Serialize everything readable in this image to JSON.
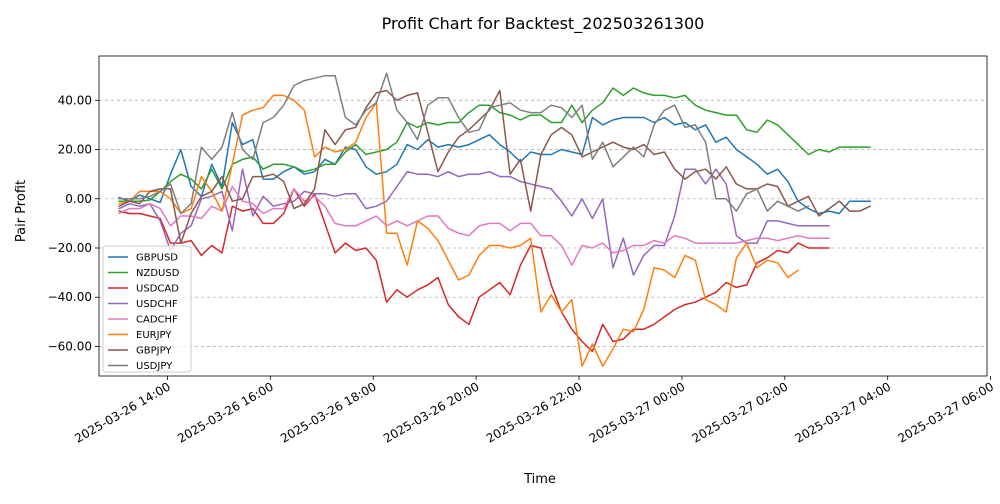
{
  "chart_data": {
    "type": "line",
    "title": "Profit Chart for Backtest_202503261300",
    "xlabel": "Time",
    "ylabel": "Pair Profit",
    "grid": true,
    "legend_position": "lower-left",
    "x_range_hours": [
      -0.33,
      16.93
    ],
    "ylim": [
      -72,
      58
    ],
    "y_ticks": [
      -60,
      -40,
      -20,
      0,
      20,
      40
    ],
    "y_tick_labels": [
      "−60.00",
      "−40.00",
      "−20.00",
      "0.00",
      "20.00",
      "40.00"
    ],
    "x_ticks_hours": [
      1,
      3,
      5,
      7,
      9,
      11,
      13,
      15,
      17
    ],
    "x_tick_labels": [
      "2025-03-26 14:00",
      "2025-03-26 16:00",
      "2025-03-26 18:00",
      "2025-03-26 20:00",
      "2025-03-26 22:00",
      "2025-03-27 00:00",
      "2025-03-27 02:00",
      "2025-03-27 04:00",
      "2025-03-27 06:00"
    ],
    "x_start_hours": 0.06,
    "x_step_hours": 0.2,
    "series": [
      {
        "name": "GBPUSD",
        "color": "#1f77b4",
        "values": [
          0.5,
          -1,
          1.5,
          0,
          -1.5,
          10,
          20,
          5,
          1,
          14,
          5,
          31,
          22,
          24,
          8,
          8,
          11,
          13,
          10,
          11,
          16,
          14,
          21,
          20,
          13,
          10,
          11,
          14,
          22,
          20,
          24,
          21,
          22,
          21,
          22,
          24,
          26,
          22,
          19,
          15,
          19,
          18,
          18,
          20,
          19,
          18,
          33,
          30,
          32,
          33,
          33,
          33,
          31,
          33,
          30,
          31,
          28,
          30,
          23,
          25,
          20,
          17,
          14,
          10,
          12,
          7,
          -1,
          -4,
          -6,
          -5,
          -6,
          -1,
          -1,
          -1
        ]
      },
      {
        "name": "NZDUSD",
        "color": "#2ca02c",
        "values": [
          -1,
          -1,
          -1,
          -0.5,
          3,
          7,
          10,
          8,
          4,
          12,
          4,
          14,
          16,
          17,
          12,
          14,
          14,
          13,
          11,
          12,
          14,
          14,
          19,
          22,
          18,
          19,
          20,
          23,
          31,
          29,
          31,
          30,
          31,
          31,
          35,
          38,
          38,
          35,
          34,
          32,
          34,
          34,
          31,
          31,
          38,
          31,
          36,
          39,
          45,
          42,
          45,
          43,
          42,
          42,
          41,
          42,
          38,
          36,
          35,
          34,
          34,
          28,
          27,
          32,
          30,
          26,
          22,
          18,
          20,
          19,
          21,
          21,
          21,
          21
        ]
      },
      {
        "name": "USDCAD",
        "color": "#d62728",
        "values": [
          -5,
          -6,
          -6,
          -7,
          -8,
          -18,
          -18,
          -17,
          -23,
          -19,
          -22,
          -3,
          -5,
          -4,
          -10,
          -10,
          -6,
          4,
          -3,
          2,
          -10,
          -22,
          -18,
          -21,
          -20,
          -25,
          -42,
          -37,
          -40,
          -37,
          -35,
          -32,
          -43,
          -48,
          -51,
          -40,
          -37,
          -34,
          -39,
          -27,
          -19,
          -20,
          -35,
          -46,
          -53,
          -58,
          -62,
          -51,
          -58,
          -57,
          -53,
          -53,
          -51,
          -48,
          -45,
          -43,
          -42,
          -40,
          -38,
          -34,
          -36,
          -35,
          -26,
          -24,
          -21,
          -22,
          -18,
          -20,
          -20,
          -20
        ]
      },
      {
        "name": "USDCHF",
        "color": "#9467bd",
        "values": [
          -4,
          -2,
          -3,
          -2,
          -9,
          -21,
          -14,
          -11,
          0,
          1,
          3,
          -13,
          12,
          -7,
          1,
          -3,
          -2,
          -1,
          3,
          2,
          2,
          1,
          2,
          2,
          -4,
          -3,
          -1,
          5,
          11,
          10,
          10,
          9,
          11,
          9,
          10,
          10,
          11,
          9,
          9,
          7,
          6,
          5,
          4,
          -1,
          -7,
          0,
          -8,
          0,
          -28,
          -16,
          -31,
          -23,
          -19,
          -19,
          -7,
          12,
          12,
          6,
          12,
          6,
          -15,
          -18,
          -18,
          -9,
          -9,
          -10,
          -11,
          -11,
          -11,
          -11
        ]
      },
      {
        "name": "CADCHF",
        "color": "#e377c2",
        "values": [
          -6,
          -4,
          -4,
          -2,
          -4,
          -11,
          -7,
          -7,
          -8,
          -3,
          -5,
          5,
          -1,
          -2,
          -6,
          -4,
          -4,
          4,
          -1,
          1,
          -3,
          -10,
          -11,
          -11,
          -9,
          -7,
          -11,
          -9,
          -11,
          -9,
          -7,
          -7,
          -12,
          -14,
          -15,
          -11,
          -10,
          -10,
          -13,
          -10,
          -10,
          -15,
          -15,
          -19,
          -27,
          -19,
          -20,
          -18,
          -22,
          -21,
          -19,
          -19,
          -17,
          -18,
          -15,
          -16,
          -18,
          -18,
          -18,
          -18,
          -18,
          -17,
          -16,
          -16,
          -17,
          -16,
          -15,
          -16,
          -16,
          -16
        ]
      },
      {
        "name": "EURJPY",
        "color": "#ff7f0e",
        "values": [
          -2,
          -1,
          3,
          3,
          3,
          0,
          -6,
          -4,
          9,
          3,
          -5,
          14,
          34,
          36,
          37,
          42,
          42,
          40,
          36,
          17,
          21,
          19,
          20,
          23,
          33,
          39,
          -14,
          -14,
          -27,
          -9,
          -12,
          -17,
          -25,
          -33,
          -31,
          -23,
          -19,
          -19,
          -20,
          -19,
          -16,
          -46,
          -39,
          -46,
          -41,
          -68,
          -59,
          -68,
          -61,
          -53,
          -54,
          -45,
          -28,
          -29,
          -32,
          -23,
          -25,
          -41,
          -43,
          -46,
          -24,
          -18,
          -28,
          -25,
          -26,
          -32,
          -29
        ]
      },
      {
        "name": "GBPJPY",
        "color": "#8c564b",
        "values": [
          -3,
          -1,
          -2,
          3,
          4,
          4,
          -18,
          -6,
          1,
          3,
          9,
          -1,
          0,
          9,
          9,
          10,
          7,
          -4,
          -2,
          4,
          28,
          22,
          28,
          29,
          37,
          43,
          44,
          40,
          42,
          43,
          27,
          11,
          19,
          25,
          28,
          32,
          36,
          44,
          10,
          16,
          -5,
          18,
          26,
          29,
          26,
          17,
          19,
          21,
          23,
          21,
          20,
          22,
          18,
          19,
          12,
          8,
          11,
          12,
          8,
          13,
          6,
          4,
          4,
          6,
          5,
          -3,
          -1,
          1,
          -7,
          -4,
          -1,
          -5,
          -5,
          -3
        ]
      },
      {
        "name": "USDJPY",
        "color": "#7f7f7f",
        "values": [
          0,
          0,
          0,
          1,
          3,
          6,
          -6,
          -2,
          21,
          16,
          21,
          35,
          20,
          16,
          31,
          33,
          38,
          46,
          48,
          49,
          50,
          50,
          33,
          30,
          36,
          39,
          51,
          36,
          31,
          24,
          38,
          41,
          41,
          33,
          27,
          28,
          37,
          38,
          39,
          36,
          35,
          35,
          38,
          37,
          33,
          38,
          16,
          23,
          13,
          17,
          21,
          17,
          30,
          36,
          38,
          29,
          30,
          23,
          0,
          0,
          -5,
          2,
          4,
          -5,
          -1,
          -3,
          -5,
          -3
        ]
      }
    ]
  }
}
